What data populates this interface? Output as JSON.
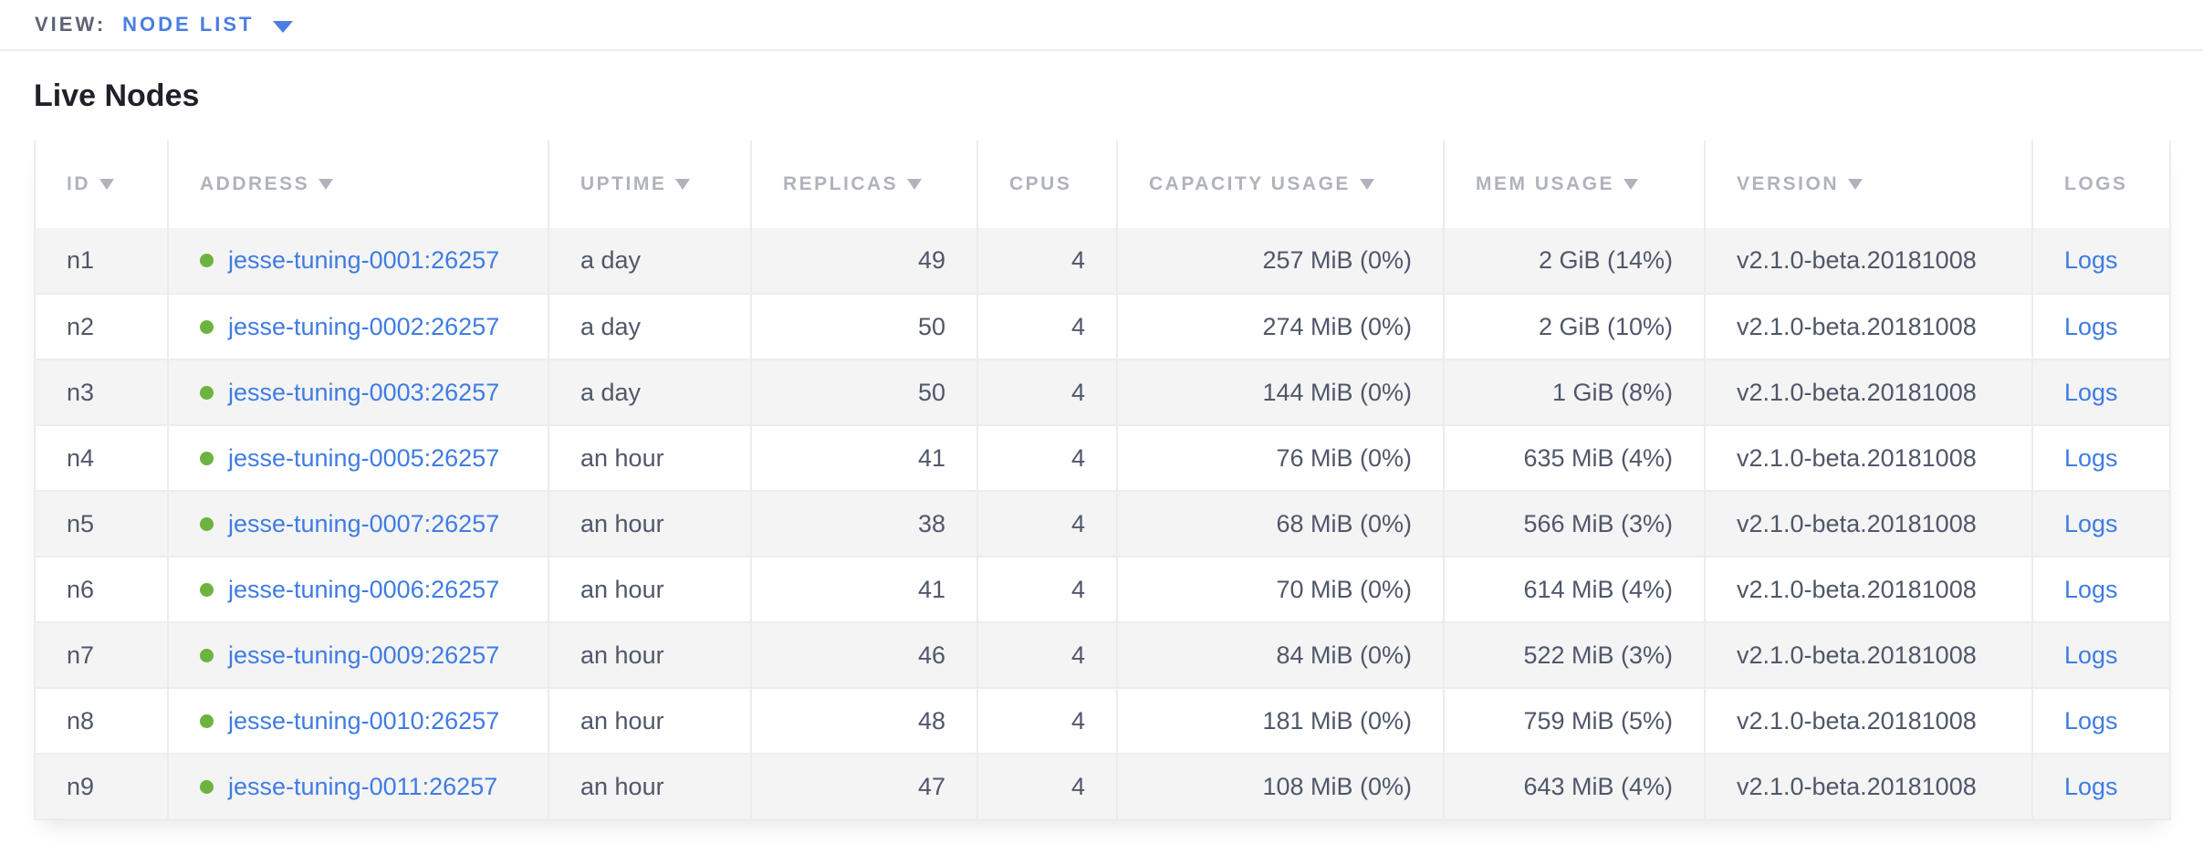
{
  "view_bar": {
    "label": "VIEW:",
    "selected": "NODE LIST"
  },
  "page": {
    "title": "Live Nodes"
  },
  "table": {
    "columns": [
      {
        "key": "id",
        "label": "ID",
        "sortable": true,
        "align": "left"
      },
      {
        "key": "address",
        "label": "ADDRESS",
        "sortable": true,
        "align": "left"
      },
      {
        "key": "uptime",
        "label": "UPTIME",
        "sortable": true,
        "align": "left"
      },
      {
        "key": "replicas",
        "label": "REPLICAS",
        "sortable": true,
        "align": "right"
      },
      {
        "key": "cpus",
        "label": "CPUS",
        "sortable": false,
        "align": "right"
      },
      {
        "key": "capacity",
        "label": "CAPACITY USAGE",
        "sortable": true,
        "align": "right"
      },
      {
        "key": "mem",
        "label": "MEM USAGE",
        "sortable": true,
        "align": "right"
      },
      {
        "key": "version",
        "label": "VERSION",
        "sortable": true,
        "align": "left"
      },
      {
        "key": "logs",
        "label": "LOGS",
        "sortable": false,
        "align": "left"
      }
    ],
    "rows": [
      {
        "id": "n1",
        "address": "jesse-tuning-0001:26257",
        "uptime": "a day",
        "replicas": "49",
        "cpus": "4",
        "capacity": "257 MiB (0%)",
        "mem": "2 GiB (14%)",
        "version": "v2.1.0-beta.20181008",
        "logs": "Logs",
        "status": "live"
      },
      {
        "id": "n2",
        "address": "jesse-tuning-0002:26257",
        "uptime": "a day",
        "replicas": "50",
        "cpus": "4",
        "capacity": "274 MiB (0%)",
        "mem": "2 GiB (10%)",
        "version": "v2.1.0-beta.20181008",
        "logs": "Logs",
        "status": "live"
      },
      {
        "id": "n3",
        "address": "jesse-tuning-0003:26257",
        "uptime": "a day",
        "replicas": "50",
        "cpus": "4",
        "capacity": "144 MiB (0%)",
        "mem": "1 GiB (8%)",
        "version": "v2.1.0-beta.20181008",
        "logs": "Logs",
        "status": "live"
      },
      {
        "id": "n4",
        "address": "jesse-tuning-0005:26257",
        "uptime": "an hour",
        "replicas": "41",
        "cpus": "4",
        "capacity": "76 MiB (0%)",
        "mem": "635 MiB (4%)",
        "version": "v2.1.0-beta.20181008",
        "logs": "Logs",
        "status": "live"
      },
      {
        "id": "n5",
        "address": "jesse-tuning-0007:26257",
        "uptime": "an hour",
        "replicas": "38",
        "cpus": "4",
        "capacity": "68 MiB (0%)",
        "mem": "566 MiB (3%)",
        "version": "v2.1.0-beta.20181008",
        "logs": "Logs",
        "status": "live"
      },
      {
        "id": "n6",
        "address": "jesse-tuning-0006:26257",
        "uptime": "an hour",
        "replicas": "41",
        "cpus": "4",
        "capacity": "70 MiB (0%)",
        "mem": "614 MiB (4%)",
        "version": "v2.1.0-beta.20181008",
        "logs": "Logs",
        "status": "live"
      },
      {
        "id": "n7",
        "address": "jesse-tuning-0009:26257",
        "uptime": "an hour",
        "replicas": "46",
        "cpus": "4",
        "capacity": "84 MiB (0%)",
        "mem": "522 MiB (3%)",
        "version": "v2.1.0-beta.20181008",
        "logs": "Logs",
        "status": "live"
      },
      {
        "id": "n8",
        "address": "jesse-tuning-0010:26257",
        "uptime": "an hour",
        "replicas": "48",
        "cpus": "4",
        "capacity": "181 MiB (0%)",
        "mem": "759 MiB (5%)",
        "version": "v2.1.0-beta.20181008",
        "logs": "Logs",
        "status": "live"
      },
      {
        "id": "n9",
        "address": "jesse-tuning-0011:26257",
        "uptime": "an hour",
        "replicas": "47",
        "cpus": "4",
        "capacity": "108 MiB (0%)",
        "mem": "643 MiB (4%)",
        "version": "v2.1.0-beta.20181008",
        "logs": "Logs",
        "status": "live"
      }
    ]
  },
  "colors": {
    "accent_blue": "#4a7ee2",
    "link_blue": "#3f7ce2",
    "live_green": "#6db33f",
    "header_gray": "#b0b3bb",
    "text_slate": "#4f5769",
    "view_label_gray": "#5c6474",
    "stripe_gray": "#f4f4f5",
    "border_gray": "#ececee",
    "row_border": "#ededee"
  }
}
